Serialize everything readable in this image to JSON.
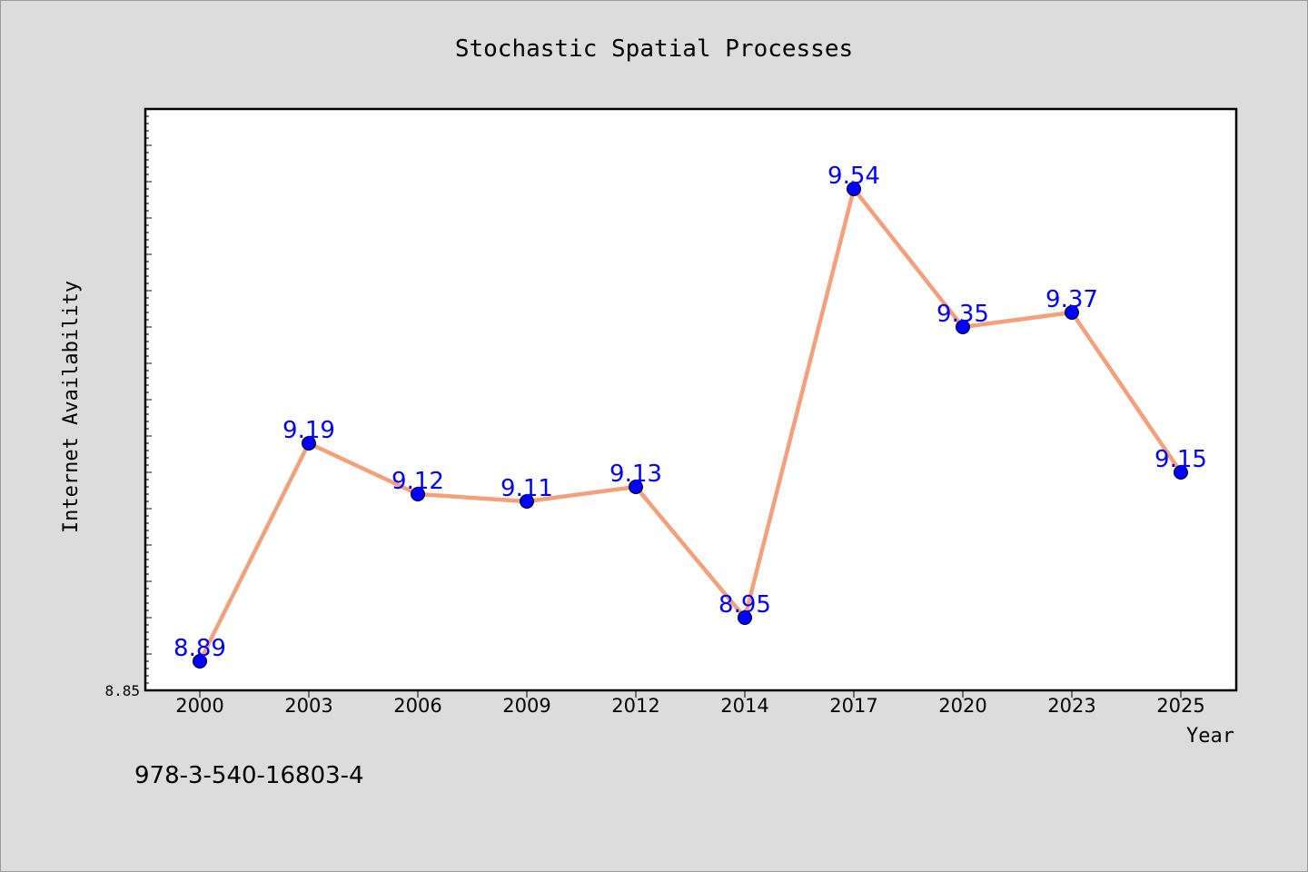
{
  "chart_data": {
    "type": "line",
    "title": "Stochastic Spatial Processes",
    "xlabel": "Year",
    "ylabel": "Internet Availability",
    "categories": [
      "2000",
      "2003",
      "2006",
      "2009",
      "2012",
      "2014",
      "2017",
      "2020",
      "2023",
      "2025"
    ],
    "series": [
      {
        "values": [
          8.89,
          9.19,
          9.12,
          9.11,
          9.13,
          8.95,
          9.54,
          9.35,
          9.37,
          9.15
        ],
        "labels": [
          "8.89",
          "9.19",
          "9.12",
          "9.11",
          "9.13",
          "8.95",
          "9.54",
          "9.35",
          "9.37",
          "9.15"
        ],
        "line_color": "#f4a07a",
        "marker_color": "#0000ff"
      }
    ],
    "ylim": [
      8.85,
      9.65
    ],
    "y_tick_labels": [
      {
        "value": 8.85,
        "label": "8.85"
      }
    ],
    "y_minor_step": 0.01,
    "y_major_step": 0.05,
    "grid": false,
    "legend": "none"
  },
  "footer": {
    "isbn": "978-3-540-16803-4"
  },
  "colors": {
    "background": "#dcdcdc",
    "plot_background": "#ffffff",
    "line": "#f4a07a",
    "marker": "#0000ff",
    "data_label": "#0000ff"
  }
}
